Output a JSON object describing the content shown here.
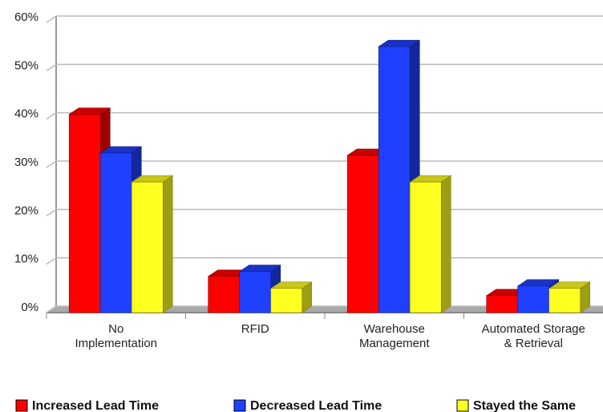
{
  "chart_data": {
    "type": "bar3d",
    "categories": [
      "No\nImplementation",
      "RFID",
      "Warehouse\nManagement",
      "Automated Storage\n& Retrieval"
    ],
    "series": [
      {
        "name": "Increased Lead Time",
        "color": "#ff0000",
        "values": [
          41,
          7.5,
          32.5,
          3.5
        ]
      },
      {
        "name": "Decreased Lead Time",
        "color": "#2040ff",
        "values": [
          33,
          8.5,
          55,
          5.5
        ]
      },
      {
        "name": "Stayed the Same",
        "color": "#ffff20",
        "values": [
          27,
          5,
          27,
          5
        ]
      }
    ],
    "ylim": [
      0,
      60
    ],
    "yticks": [
      {
        "value": 0,
        "label": "0%"
      },
      {
        "value": 10,
        "label": "10%"
      },
      {
        "value": 20,
        "label": "20%"
      },
      {
        "value": 30,
        "label": "30%"
      },
      {
        "value": 40,
        "label": "40%"
      },
      {
        "value": 50,
        "label": "50%"
      },
      {
        "value": 60,
        "label": "60%"
      }
    ],
    "grid": true,
    "legend": "bottom"
  }
}
